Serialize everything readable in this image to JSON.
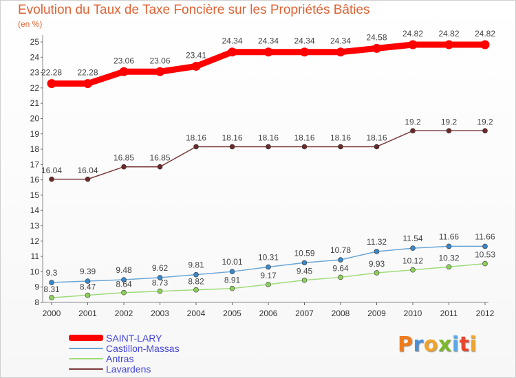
{
  "title": "Evolution du Taux de Taxe Foncière sur les Propriétés Bâties",
  "subtitle": "(en %)",
  "logo": {
    "text": "Proxiti",
    "letter_colors": [
      "#f07c1c",
      "#4a90d9",
      "#f2a42a",
      "#7ab929",
      "#5aa9e6",
      "#e8452c",
      "#f2a42a"
    ]
  },
  "chart_data": {
    "type": "line",
    "x": [
      "2000",
      "2001",
      "2002",
      "2003",
      "2004",
      "2005",
      "2006",
      "2007",
      "2008",
      "2009",
      "2010",
      "2011",
      "2012"
    ],
    "ylim": [
      8,
      25
    ],
    "yticks": [
      8,
      9,
      10,
      11,
      12,
      13,
      14,
      15,
      16,
      17,
      18,
      19,
      20,
      21,
      22,
      23,
      24,
      25
    ],
    "grid": false,
    "legend_position": "bottom-left",
    "series": [
      {
        "name": "SAINT-LARY",
        "color": "#ff0000",
        "marker": "#ff0000",
        "width": 9,
        "values": [
          22.28,
          22.28,
          23.06,
          23.06,
          23.41,
          24.34,
          24.34,
          24.34,
          24.34,
          24.58,
          24.82,
          24.82,
          24.82
        ],
        "labels": [
          "22.28",
          "22.28",
          "23.06",
          "23.06",
          "23.41",
          "24.34",
          "24.34",
          "24.34",
          "24.34",
          "24.58",
          "24.82",
          "24.82",
          "24.82"
        ]
      },
      {
        "name": "Castillon-Massas",
        "color": "#6aa6d6",
        "marker": "#3a88c8",
        "width": 1.5,
        "values": [
          9.3,
          9.39,
          9.48,
          9.62,
          9.81,
          10.01,
          10.31,
          10.59,
          10.78,
          11.32,
          11.54,
          11.66,
          11.66
        ],
        "labels": [
          "9.3",
          "9.39",
          "9.48",
          "9.62",
          "9.81",
          "10.01",
          "10.31",
          "10.59",
          "10.78",
          "11.32",
          "11.54",
          "11.66",
          "11.66"
        ]
      },
      {
        "name": "Antras",
        "color": "#9fdc7a",
        "marker": "#8ed05c",
        "width": 1.5,
        "values": [
          8.31,
          8.47,
          8.64,
          8.73,
          8.82,
          8.91,
          9.17,
          9.45,
          9.64,
          9.93,
          10.12,
          10.32,
          10.53
        ],
        "labels": [
          "8.31",
          "8.47",
          "8.64",
          "8.73",
          "8.82",
          "8.91",
          "9.17",
          "9.45",
          "9.64",
          "9.93",
          "10.12",
          "10.32",
          "10.53"
        ]
      },
      {
        "name": "Lavardens",
        "color": "#7a3a3a",
        "marker": "#6b2a2a",
        "width": 1.5,
        "values": [
          16.04,
          16.04,
          16.85,
          16.85,
          18.16,
          18.16,
          18.16,
          18.16,
          18.16,
          18.16,
          19.2,
          19.2,
          19.2
        ],
        "labels": [
          "16.04",
          "16.04",
          "16.85",
          "16.85",
          "18.16",
          "18.16",
          "18.16",
          "18.16",
          "18.16",
          "18.16",
          "19.2",
          "19.2",
          "19.2"
        ]
      }
    ]
  }
}
